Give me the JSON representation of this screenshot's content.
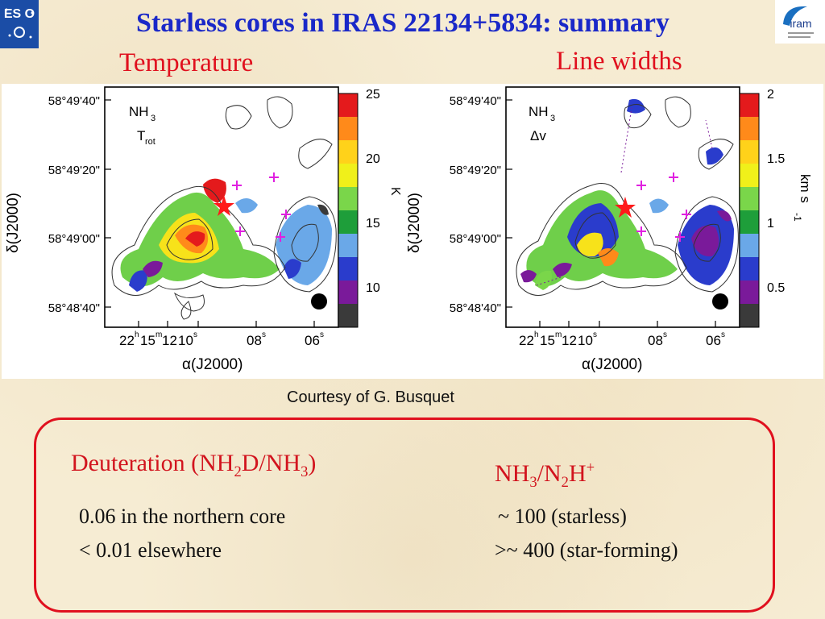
{
  "header": {
    "title": "Starless cores in IRAS 22134+5834: summary",
    "temperature_label": "Temperature",
    "linewidth_label": "Line widths"
  },
  "logos": {
    "eso_text": "ES O",
    "iram_text": "iram"
  },
  "maps": [
    {
      "molecule": "NH",
      "molecule_sub": "3",
      "quantity": "T",
      "quantity_sub": "rot",
      "dec_ticks": [
        "58°49'40\"",
        "58°49'20\"",
        "58°49'00\"",
        "58°48'40\""
      ],
      "ra_ticks": [
        "22h15m12s10s",
        "08s",
        "06s"
      ],
      "ra_first_main": "22",
      "ra_h": "h",
      "ra_mid": "15",
      "ra_m": "m",
      "ra_12": "12",
      "ra_10": "10",
      "ra_s": "s",
      "ra_08": "08",
      "ra_06": "06",
      "xlabel": "α(J2000)",
      "ylabel": "δ(J2000)",
      "colorbar_ticks": [
        "25",
        "20",
        "15",
        "10"
      ],
      "colorbar_unit": "K"
    },
    {
      "molecule": "NH",
      "molecule_sub": "3",
      "quantity": "Δv",
      "dec_ticks": [
        "58°49'40\"",
        "58°49'20\"",
        "58°49'00\"",
        "58°48'40\""
      ],
      "ra_first_main": "22",
      "ra_h": "h",
      "ra_mid": "15",
      "ra_m": "m",
      "ra_12": "12",
      "ra_10": "10",
      "ra_s": "s",
      "ra_08": "08",
      "ra_06": "06",
      "xlabel": "α(J2000)",
      "ylabel": "δ(J2000)",
      "colorbar_ticks": [
        "2",
        "1.5",
        "1",
        "0.5"
      ],
      "colorbar_unit": "km s",
      "colorbar_unit_sup": "-1"
    }
  ],
  "colorbar_colors": [
    "#e41a1c",
    "#ff8a1a",
    "#ffd21a",
    "#f0f01a",
    "#7ad64a",
    "#1e9e3a",
    "#6aa8e8",
    "#2a3ccc",
    "#7a1a9a",
    "#3a3a3a"
  ],
  "credit": "Courtesy of G. Busquet",
  "summary": {
    "deut_head_a": "Deuteration (NH",
    "deut_head_sub": "2",
    "deut_head_b": "D/NH",
    "deut_head_sub2": "3",
    "deut_head_c": ")",
    "deut_line1": "0.06 in the northern core",
    "deut_line2": "< 0.01 elsewhere",
    "ratio_head_a": "NH",
    "ratio_head_sub": "3",
    "ratio_head_b": "/N",
    "ratio_head_sub2": "2",
    "ratio_head_c": "H",
    "ratio_head_sup": "+",
    "ratio_line1": "~ 100 (starless)",
    "ratio_line2": ">~ 400 (star-forming)"
  }
}
